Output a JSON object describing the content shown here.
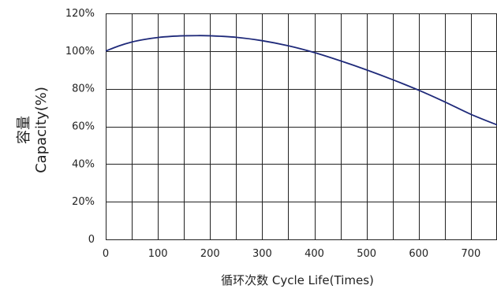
{
  "chart_data": {
    "type": "line",
    "title": "",
    "xlabel": "循环次数 Cycle Life(Times)",
    "ylabel_cn": "容量",
    "ylabel_en": "Capacity(%)",
    "xlim": [
      0,
      750
    ],
    "ylim": [
      0,
      120
    ],
    "x_ticks": [
      0,
      100,
      200,
      300,
      400,
      500,
      600,
      700
    ],
    "x_tick_labels": [
      "0",
      "100",
      "200",
      "300",
      "400",
      "500",
      "600",
      "700"
    ],
    "y_ticks": [
      0,
      20,
      40,
      60,
      80,
      100,
      120
    ],
    "y_tick_labels": [
      "0",
      "20%",
      "40%",
      "60%",
      "80%",
      "100%",
      "120%"
    ],
    "x_grid": [
      0,
      50,
      100,
      150,
      200,
      250,
      300,
      350,
      400,
      450,
      500,
      550,
      600,
      650,
      700,
      750
    ],
    "grid": true,
    "legend": "none",
    "colors": {
      "series": "#1f2a7a",
      "grid": "#222222"
    },
    "series": [
      {
        "x": [
          0,
          25,
          50,
          75,
          100,
          125,
          150,
          175,
          200,
          250,
          300,
          350,
          400,
          450,
          500,
          550,
          600,
          650,
          700,
          750
        ],
        "values": [
          100,
          102.7,
          104.8,
          106.2,
          107.2,
          107.8,
          108.1,
          108.2,
          108.1,
          107.3,
          105.5,
          102.8,
          99.2,
          94.8,
          90.0,
          84.8,
          79.2,
          73.0,
          66.4,
          60.8
        ]
      }
    ]
  }
}
